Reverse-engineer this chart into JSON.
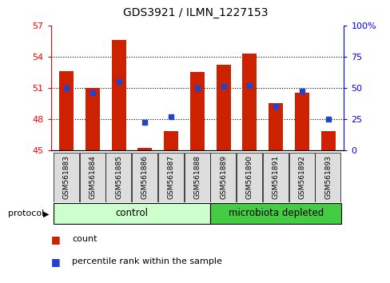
{
  "title": "GDS3921 / ILMN_1227153",
  "samples": [
    "GSM561883",
    "GSM561884",
    "GSM561885",
    "GSM561886",
    "GSM561887",
    "GSM561888",
    "GSM561889",
    "GSM561890",
    "GSM561891",
    "GSM561892",
    "GSM561893"
  ],
  "counts": [
    52.6,
    51.0,
    55.6,
    45.2,
    46.8,
    52.5,
    53.2,
    54.3,
    49.5,
    50.5,
    46.8
  ],
  "percentile_ranks": [
    50,
    46,
    55,
    22,
    27,
    50,
    51,
    52,
    35,
    47,
    25
  ],
  "ylim_left": [
    45,
    57
  ],
  "ylim_right": [
    0,
    100
  ],
  "yticks_left": [
    45,
    48,
    51,
    54,
    57
  ],
  "yticks_right": [
    0,
    25,
    50,
    75,
    100
  ],
  "bar_color": "#cc2200",
  "dot_color": "#2244cc",
  "bar_width": 0.55,
  "control_samples": 6,
  "control_color": "#ccffcc",
  "microbiota_color": "#44cc44",
  "protocol_label": "protocol",
  "group_labels": [
    "control",
    "microbiota depleted"
  ],
  "legend_items": [
    "count",
    "percentile rank within the sample"
  ],
  "base_value": 45,
  "grid_color": "black",
  "sample_box_color": "#dddddd",
  "figsize": [
    4.89,
    3.54
  ],
  "dpi": 100
}
